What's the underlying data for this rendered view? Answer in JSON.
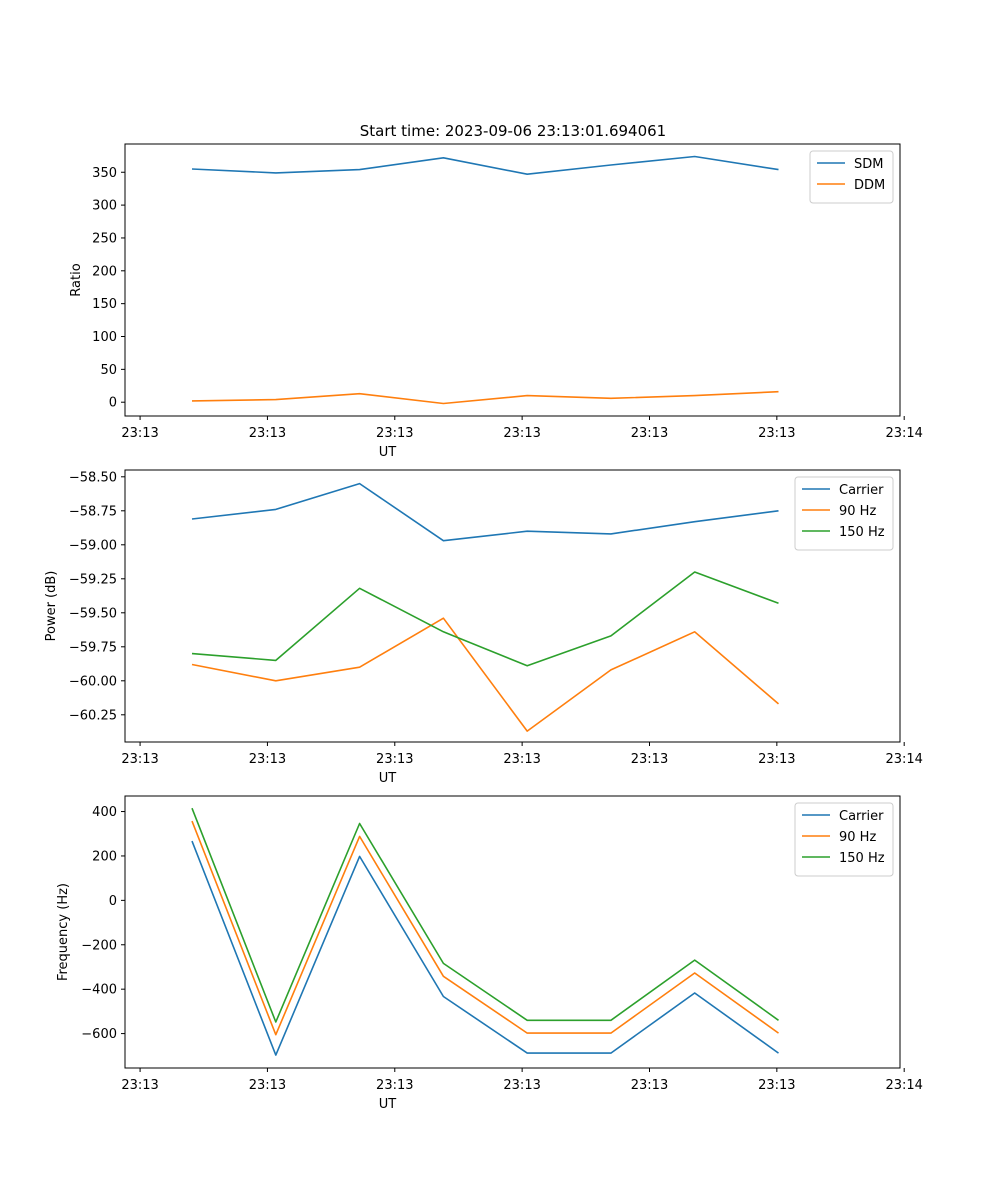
{
  "figure": {
    "title": "Start time: 2023-09-06 23:13:01.694061"
  },
  "colors": {
    "blue": "#1f77b4",
    "orange": "#ff7f0e",
    "green": "#2ca02c"
  },
  "chart_data": [
    {
      "type": "line",
      "title": "Start time: 2023-09-06 23:13:01.694061",
      "xlabel": "UT",
      "ylabel": "Ratio",
      "x": [
        1,
        2,
        3,
        4,
        5,
        6,
        7,
        8
      ],
      "xlim": [
        0.2,
        9.45
      ],
      "x_ticks": [
        0.38,
        1.9,
        3.42,
        4.94,
        6.46,
        7.98,
        9.5
      ],
      "x_tick_labels": [
        "23:13",
        "23:13",
        "23:13",
        "23:13",
        "23:13",
        "23:13",
        "23:14"
      ],
      "ylim": [
        -21,
        393
      ],
      "y_ticks": [
        0,
        50,
        100,
        150,
        200,
        250,
        300,
        350
      ],
      "y_tick_labels": [
        "0",
        "50",
        "100",
        "150",
        "200",
        "250",
        "300",
        "350"
      ],
      "legend_position": "top-right",
      "series": [
        {
          "name": "SDM",
          "color": "#1f77b4",
          "values": [
            355,
            349,
            354,
            372,
            347,
            361,
            374,
            354
          ]
        },
        {
          "name": "DDM",
          "color": "#ff7f0e",
          "values": [
            2,
            4,
            13,
            -2,
            10,
            6,
            10,
            16
          ]
        }
      ]
    },
    {
      "type": "line",
      "xlabel": "UT",
      "ylabel": "Power (dB)",
      "x": [
        1,
        2,
        3,
        4,
        5,
        6,
        7,
        8
      ],
      "xlim": [
        0.2,
        9.45
      ],
      "x_ticks": [
        0.38,
        1.9,
        3.42,
        4.94,
        6.46,
        7.98,
        9.5
      ],
      "x_tick_labels": [
        "23:13",
        "23:13",
        "23:13",
        "23:13",
        "23:13",
        "23:13",
        "23:14"
      ],
      "ylim": [
        -60.45,
        -58.45
      ],
      "y_ticks": [
        -60.25,
        -60.0,
        -59.75,
        -59.5,
        -59.25,
        -59.0,
        -58.75,
        -58.5
      ],
      "y_tick_labels": [
        "−60.25",
        "−60.00",
        "−59.75",
        "−59.50",
        "−59.25",
        "−59.00",
        "−58.75",
        "−58.50"
      ],
      "legend_position": "top-right",
      "series": [
        {
          "name": "Carrier",
          "color": "#1f77b4",
          "values": [
            -58.81,
            -58.74,
            -58.55,
            -58.97,
            -58.9,
            -58.92,
            -58.83,
            -58.75
          ]
        },
        {
          "name": "90 Hz",
          "color": "#ff7f0e",
          "values": [
            -59.88,
            -60.0,
            -59.9,
            -59.54,
            -60.37,
            -59.92,
            -59.64,
            -60.17
          ]
        },
        {
          "name": "150 Hz",
          "color": "#2ca02c",
          "values": [
            -59.8,
            -59.85,
            -59.32,
            -59.64,
            -59.89,
            -59.67,
            -59.2,
            -59.43
          ]
        }
      ]
    },
    {
      "type": "line",
      "xlabel": "UT",
      "ylabel": "Frequency (Hz)",
      "x": [
        1,
        2,
        3,
        4,
        5,
        6,
        7,
        8
      ],
      "xlim": [
        0.2,
        9.45
      ],
      "x_ticks": [
        0.38,
        1.9,
        3.42,
        4.94,
        6.46,
        7.98,
        9.5
      ],
      "x_tick_labels": [
        "23:13",
        "23:13",
        "23:13",
        "23:13",
        "23:13",
        "23:13",
        "23:14"
      ],
      "ylim": [
        -755,
        470
      ],
      "y_ticks": [
        -600,
        -400,
        -200,
        0,
        200,
        400
      ],
      "y_tick_labels": [
        "−600",
        "−400",
        "−200",
        "0",
        "200",
        "400"
      ],
      "legend_position": "top-right",
      "series": [
        {
          "name": "Carrier",
          "color": "#1f77b4",
          "values": [
            267,
            -697,
            198,
            -433,
            -688,
            -688,
            -417,
            -688
          ]
        },
        {
          "name": "90 Hz",
          "color": "#ff7f0e",
          "values": [
            357,
            -605,
            288,
            -342,
            -598,
            -598,
            -327,
            -598
          ]
        },
        {
          "name": "150 Hz",
          "color": "#2ca02c",
          "values": [
            415,
            -548,
            346,
            -284,
            -540,
            -540,
            -269,
            -540
          ]
        }
      ]
    }
  ]
}
